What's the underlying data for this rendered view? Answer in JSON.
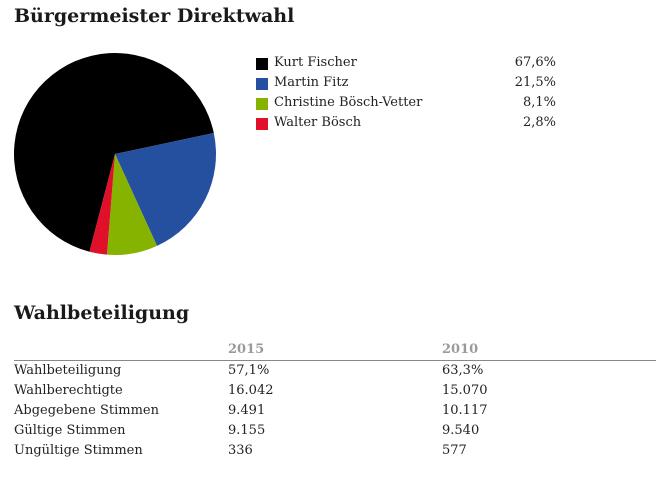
{
  "title": "Bürgermeister Direktwahl",
  "chart_data": {
    "type": "pie",
    "categories": [
      "Kurt Fischer",
      "Martin Fitz",
      "Christine Bösch-Vetter",
      "Walter Bösch"
    ],
    "values": [
      67.6,
      21.5,
      8.1,
      2.8
    ],
    "value_labels": [
      "67,6%",
      "21,5%",
      "8,1%",
      "2,8%"
    ],
    "colors": [
      "#000000",
      "#2550a0",
      "#86b300",
      "#e0102a"
    ],
    "legend_position": "right"
  },
  "turnout": {
    "heading": "Wahlbeteiligung",
    "columns": [
      "",
      "2015",
      "2010"
    ],
    "rows": [
      [
        "Wahlbeteiligung",
        "57,1%",
        "63,3%"
      ],
      [
        "Wahlberechtigte",
        "16.042",
        "15.070"
      ],
      [
        "Abgegebene Stimmen",
        "9.491",
        "10.117"
      ],
      [
        "Gültige Stimmen",
        "9.155",
        "9.540"
      ],
      [
        "Ungültige Stimmen",
        "336",
        "577"
      ]
    ]
  }
}
